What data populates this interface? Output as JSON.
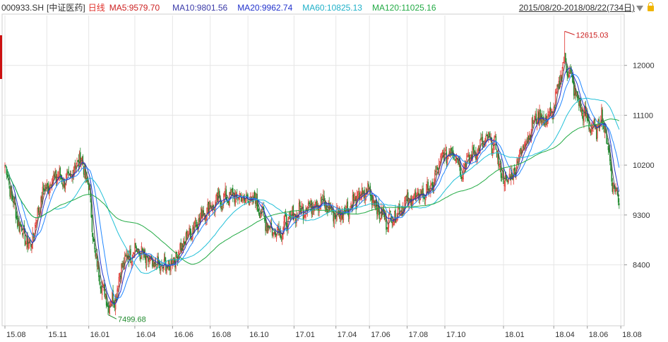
{
  "header": {
    "symbol": "000933.SH",
    "name": "[中证医药]",
    "period": "日线",
    "ma5": "MA5:9579.70",
    "ma10": "MA10:9801.56",
    "ma20": "MA20:9962.74",
    "ma60": "MA60:10825.13",
    "ma120": "MA120:11025.16",
    "range": "2015/08/20-2018/08/22(734日)",
    "dropdown_icon": "triangle-down-icon",
    "lock_icon": "lock-icon"
  },
  "colors": {
    "up": "#e0302a",
    "down": "#1f8a2d",
    "ma5": "#555555",
    "ma10": "#2233cc",
    "ma20": "#2288ff",
    "ma60": "#22c0d8",
    "ma120": "#22aa44",
    "grid": "#e6e6e6"
  },
  "chart_data": {
    "type": "candlestick",
    "y_ticks": [
      8400,
      9300,
      10200,
      11100,
      12000
    ],
    "y_tick_labels": [
      "8400",
      "9300",
      "10200",
      "11100",
      "12000"
    ],
    "ylim": [
      7300,
      12900
    ],
    "x_tick_labels": [
      "15.08",
      "15.11",
      "16.01",
      "16.04",
      "16.06",
      "16.08",
      "16.10",
      "17.01",
      "17.04",
      "17.06",
      "17.08",
      "17.10",
      "18.01",
      "18.04",
      "18.06",
      "18.08"
    ],
    "x_tick_index": [
      0,
      50,
      100,
      155,
      200,
      245,
      290,
      345,
      395,
      435,
      480,
      525,
      595,
      655,
      695,
      735
    ],
    "n_days": 734,
    "close_anchors": [
      [
        0,
        10200
      ],
      [
        15,
        9200
      ],
      [
        30,
        8700
      ],
      [
        45,
        9700
      ],
      [
        60,
        10000
      ],
      [
        75,
        9900
      ],
      [
        90,
        10350
      ],
      [
        100,
        9800
      ],
      [
        108,
        8500
      ],
      [
        118,
        7900
      ],
      [
        123,
        7700
      ],
      [
        131,
        7800
      ],
      [
        140,
        8400
      ],
      [
        155,
        8700
      ],
      [
        165,
        8550
      ],
      [
        175,
        8400
      ],
      [
        190,
        8350
      ],
      [
        200,
        8450
      ],
      [
        210,
        8700
      ],
      [
        225,
        9100
      ],
      [
        240,
        9400
      ],
      [
        255,
        9550
      ],
      [
        270,
        9650
      ],
      [
        285,
        9600
      ],
      [
        300,
        9550
      ],
      [
        310,
        9200
      ],
      [
        320,
        9000
      ],
      [
        330,
        9050
      ],
      [
        345,
        9300
      ],
      [
        360,
        9450
      ],
      [
        375,
        9550
      ],
      [
        385,
        9450
      ],
      [
        395,
        9300
      ],
      [
        410,
        9450
      ],
      [
        425,
        9650
      ],
      [
        435,
        9750
      ],
      [
        445,
        9400
      ],
      [
        455,
        9200
      ],
      [
        465,
        9300
      ],
      [
        480,
        9550
      ],
      [
        495,
        9650
      ],
      [
        510,
        9800
      ],
      [
        520,
        10300
      ],
      [
        535,
        10500
      ],
      [
        545,
        10100
      ],
      [
        555,
        10350
      ],
      [
        565,
        10500
      ],
      [
        575,
        10650
      ],
      [
        585,
        10550
      ],
      [
        595,
        9900
      ],
      [
        605,
        10000
      ],
      [
        620,
        10600
      ],
      [
        635,
        11100
      ],
      [
        645,
        11000
      ],
      [
        655,
        11200
      ],
      [
        663,
        11800
      ],
      [
        668,
        12100
      ],
      [
        675,
        11800
      ],
      [
        685,
        11300
      ],
      [
        695,
        11000
      ],
      [
        705,
        10800
      ],
      [
        712,
        11100
      ],
      [
        718,
        10700
      ],
      [
        725,
        9900
      ],
      [
        730,
        9650
      ],
      [
        734,
        9580
      ]
    ],
    "max_point": {
      "index": 668,
      "value": 12615.03,
      "label": "12615.03"
    },
    "min_point": {
      "index": 123,
      "value": 7499.68,
      "label": "7499.68"
    },
    "series": [
      {
        "name": "MA5",
        "value": 9579.7
      },
      {
        "name": "MA10",
        "value": 9801.56
      },
      {
        "name": "MA20",
        "value": 9962.74
      },
      {
        "name": "MA60",
        "value": 10825.13
      },
      {
        "name": "MA120",
        "value": 11025.16
      }
    ]
  }
}
